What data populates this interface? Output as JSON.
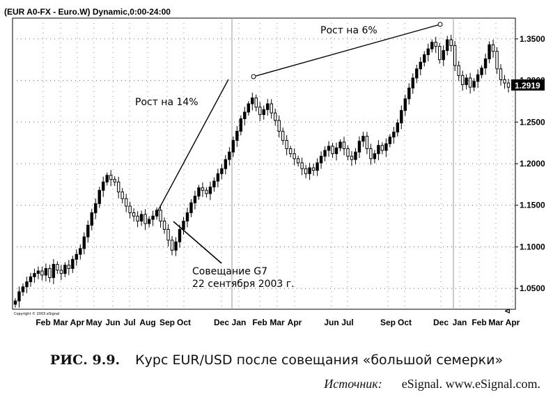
{
  "chart_data": {
    "type": "candlestick",
    "title": "(EUR A0-FX - Euro.W) Dynamic,0:00-24:00",
    "x_labels": [
      "Feb",
      "Mar",
      "Apr",
      "May",
      "Jun",
      "Jul",
      "Aug",
      "Sep",
      "Oct",
      "Dec",
      "Jan",
      "Feb",
      "Mar",
      "Apr",
      "Jun",
      "Jul",
      "Sep",
      "Oct",
      "Dec",
      "Jan",
      "Feb",
      "Mar",
      "Apr"
    ],
    "y_ticks": [
      "1.0500",
      "1.1000",
      "1.1500",
      "1.2000",
      "1.2500",
      "1.3000",
      "1.3500"
    ],
    "ylim": [
      1.025,
      1.375
    ],
    "last_price": "1.2919",
    "copyright": "Copyright © 2003 eSignal",
    "grid": true,
    "closes": [
      1.035,
      1.046,
      1.052,
      1.058,
      1.064,
      1.068,
      1.071,
      1.066,
      1.074,
      1.063,
      1.079,
      1.072,
      1.068,
      1.078,
      1.074,
      1.085,
      1.091,
      1.098,
      1.112,
      1.126,
      1.141,
      1.152,
      1.168,
      1.178,
      1.186,
      1.181,
      1.178,
      1.166,
      1.158,
      1.149,
      1.141,
      1.137,
      1.131,
      1.139,
      1.128,
      1.133,
      1.137,
      1.144,
      1.131,
      1.121,
      1.108,
      1.096,
      1.106,
      1.121,
      1.131,
      1.141,
      1.153,
      1.161,
      1.171,
      1.168,
      1.164,
      1.172,
      1.179,
      1.188,
      1.194,
      1.205,
      1.214,
      1.228,
      1.239,
      1.254,
      1.262,
      1.272,
      1.279,
      1.268,
      1.259,
      1.265,
      1.272,
      1.261,
      1.252,
      1.239,
      1.228,
      1.218,
      1.212,
      1.206,
      1.201,
      1.194,
      1.188,
      1.195,
      1.192,
      1.201,
      1.209,
      1.216,
      1.221,
      1.212,
      1.219,
      1.226,
      1.218,
      1.209,
      1.205,
      1.214,
      1.227,
      1.233,
      1.218,
      1.206,
      1.212,
      1.222,
      1.216,
      1.224,
      1.232,
      1.238,
      1.249,
      1.264,
      1.278,
      1.291,
      1.303,
      1.314,
      1.322,
      1.331,
      1.338,
      1.346,
      1.341,
      1.325,
      1.336,
      1.349,
      1.342,
      1.318,
      1.306,
      1.295,
      1.303,
      1.292,
      1.299,
      1.307,
      1.315,
      1.326,
      1.343,
      1.335,
      1.314,
      1.301,
      1.297,
      1.2919
    ],
    "annotations": [
      {
        "text": "Рост на 14%"
      },
      {
        "text": "Рост на 6%"
      },
      {
        "text_line1": "Совещание G7",
        "text_line2": "22 сентября 2003 г."
      }
    ]
  },
  "caption": {
    "figure": "РИС. 9.9.",
    "text": "Курс EUR/USD после совещания «большой семерки»"
  },
  "source": {
    "label": "Источник:",
    "text": "eSignal. www.eSignal.com."
  }
}
